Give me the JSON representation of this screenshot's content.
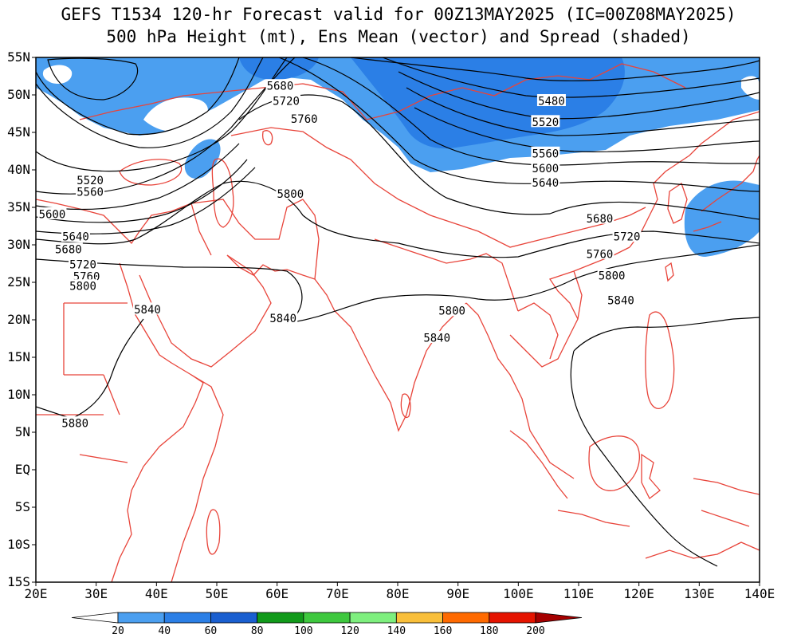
{
  "title": {
    "line1": "GEFS T1534 120-hr Forecast valid for 00Z13MAY2025 (IC=00Z08MAY2025)",
    "line2": "500 hPa Height (mt), Ens Mean (vector) and Spread (shaded)"
  },
  "map": {
    "lon_range": [
      20,
      140
    ],
    "lat_range": [
      -15,
      55
    ],
    "lon_ticks": [
      {
        "value": 20,
        "label": "20E"
      },
      {
        "value": 30,
        "label": "30E"
      },
      {
        "value": 40,
        "label": "40E"
      },
      {
        "value": 50,
        "label": "50E"
      },
      {
        "value": 60,
        "label": "60E"
      },
      {
        "value": 70,
        "label": "70E"
      },
      {
        "value": 80,
        "label": "80E"
      },
      {
        "value": 90,
        "label": "90E"
      },
      {
        "value": 100,
        "label": "100E"
      },
      {
        "value": 110,
        "label": "110E"
      },
      {
        "value": 120,
        "label": "120E"
      },
      {
        "value": 130,
        "label": "130E"
      },
      {
        "value": 140,
        "label": "140E"
      }
    ],
    "lat_ticks": [
      {
        "value": 55,
        "label": "55N"
      },
      {
        "value": 50,
        "label": "50N"
      },
      {
        "value": 45,
        "label": "45N"
      },
      {
        "value": 40,
        "label": "40N"
      },
      {
        "value": 35,
        "label": "35N"
      },
      {
        "value": 30,
        "label": "30N"
      },
      {
        "value": 25,
        "label": "25N"
      },
      {
        "value": 20,
        "label": "20N"
      },
      {
        "value": 15,
        "label": "15N"
      },
      {
        "value": 10,
        "label": "10N"
      },
      {
        "value": 5,
        "label": "5N"
      },
      {
        "value": 0,
        "label": "EQ"
      },
      {
        "value": -5,
        "label": "5S"
      },
      {
        "value": -10,
        "label": "10S"
      },
      {
        "value": -15,
        "label": "15S"
      }
    ],
    "colors": {
      "border": "#e8443a",
      "contour": "#000000",
      "frame": "#000000"
    }
  },
  "contour_labels": [
    {
      "text": "5680",
      "lon": 60.5,
      "lat": 51.2
    },
    {
      "text": "5720",
      "lon": 61.5,
      "lat": 49.2
    },
    {
      "text": "5760",
      "lon": 64.5,
      "lat": 46.8
    },
    {
      "text": "5480",
      "lon": 105.5,
      "lat": 49.2
    },
    {
      "text": "5520",
      "lon": 104.5,
      "lat": 46.4
    },
    {
      "text": "5560",
      "lon": 104.5,
      "lat": 42.2
    },
    {
      "text": "5600",
      "lon": 104.5,
      "lat": 40.2
    },
    {
      "text": "5640",
      "lon": 104.5,
      "lat": 38.3
    },
    {
      "text": "5520",
      "lon": 29.0,
      "lat": 38.6
    },
    {
      "text": "5560",
      "lon": 29.0,
      "lat": 37.1
    },
    {
      "text": "5600",
      "lon": 22.7,
      "lat": 34.1
    },
    {
      "text": "5640",
      "lon": 26.6,
      "lat": 31.1
    },
    {
      "text": "5680",
      "lon": 25.4,
      "lat": 29.4
    },
    {
      "text": "5720",
      "lon": 27.8,
      "lat": 27.4
    },
    {
      "text": "5760",
      "lon": 28.4,
      "lat": 25.8
    },
    {
      "text": "5800",
      "lon": 27.8,
      "lat": 24.5
    },
    {
      "text": "5800",
      "lon": 62.2,
      "lat": 36.8
    },
    {
      "text": "5840",
      "lon": 38.5,
      "lat": 21.4
    },
    {
      "text": "5840",
      "lon": 61.0,
      "lat": 20.2
    },
    {
      "text": "5800",
      "lon": 89.0,
      "lat": 21.2
    },
    {
      "text": "5840",
      "lon": 86.5,
      "lat": 17.6
    },
    {
      "text": "5680",
      "lon": 113.5,
      "lat": 33.5
    },
    {
      "text": "5720",
      "lon": 118.0,
      "lat": 31.1
    },
    {
      "text": "5760",
      "lon": 113.5,
      "lat": 28.8
    },
    {
      "text": "5800",
      "lon": 115.5,
      "lat": 25.9
    },
    {
      "text": "5840",
      "lon": 117.0,
      "lat": 22.6
    },
    {
      "text": "5880",
      "lon": 26.5,
      "lat": 6.2
    }
  ],
  "colorbar": {
    "levels": [
      "20",
      "40",
      "60",
      "80",
      "100",
      "120",
      "140",
      "160",
      "180",
      "200"
    ],
    "colors": [
      "#ffffff",
      "#4b9ff0",
      "#2b7fe6",
      "#1a5fd0",
      "#119a1a",
      "#3ec83e",
      "#7eef7e",
      "#f9bf3a",
      "#ff6a00",
      "#e51400",
      "#a50000"
    ]
  }
}
